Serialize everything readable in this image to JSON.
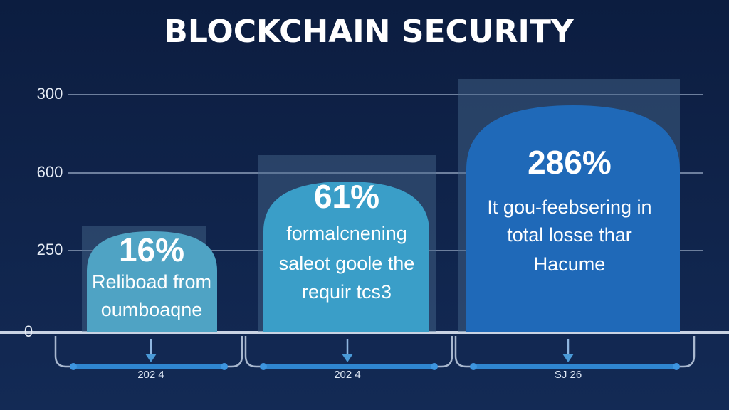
{
  "title": "BLOCKCHAIN SECURITY",
  "axis_labels": [
    "300",
    "600",
    "250",
    "0"
  ],
  "columns": [
    {
      "percent": "16%",
      "lines": [
        "Reliboad from",
        "oumboaqne"
      ],
      "footer": "202 4"
    },
    {
      "percent": "61%",
      "lines": [
        "formalcnening",
        "saleot goole the",
        "requir tcs3"
      ],
      "footer": "202 4"
    },
    {
      "percent": "286%",
      "lines": [
        "It gou-feebsering in",
        "total losse thar",
        "Hacume"
      ],
      "footer": "SJ 26"
    }
  ]
}
